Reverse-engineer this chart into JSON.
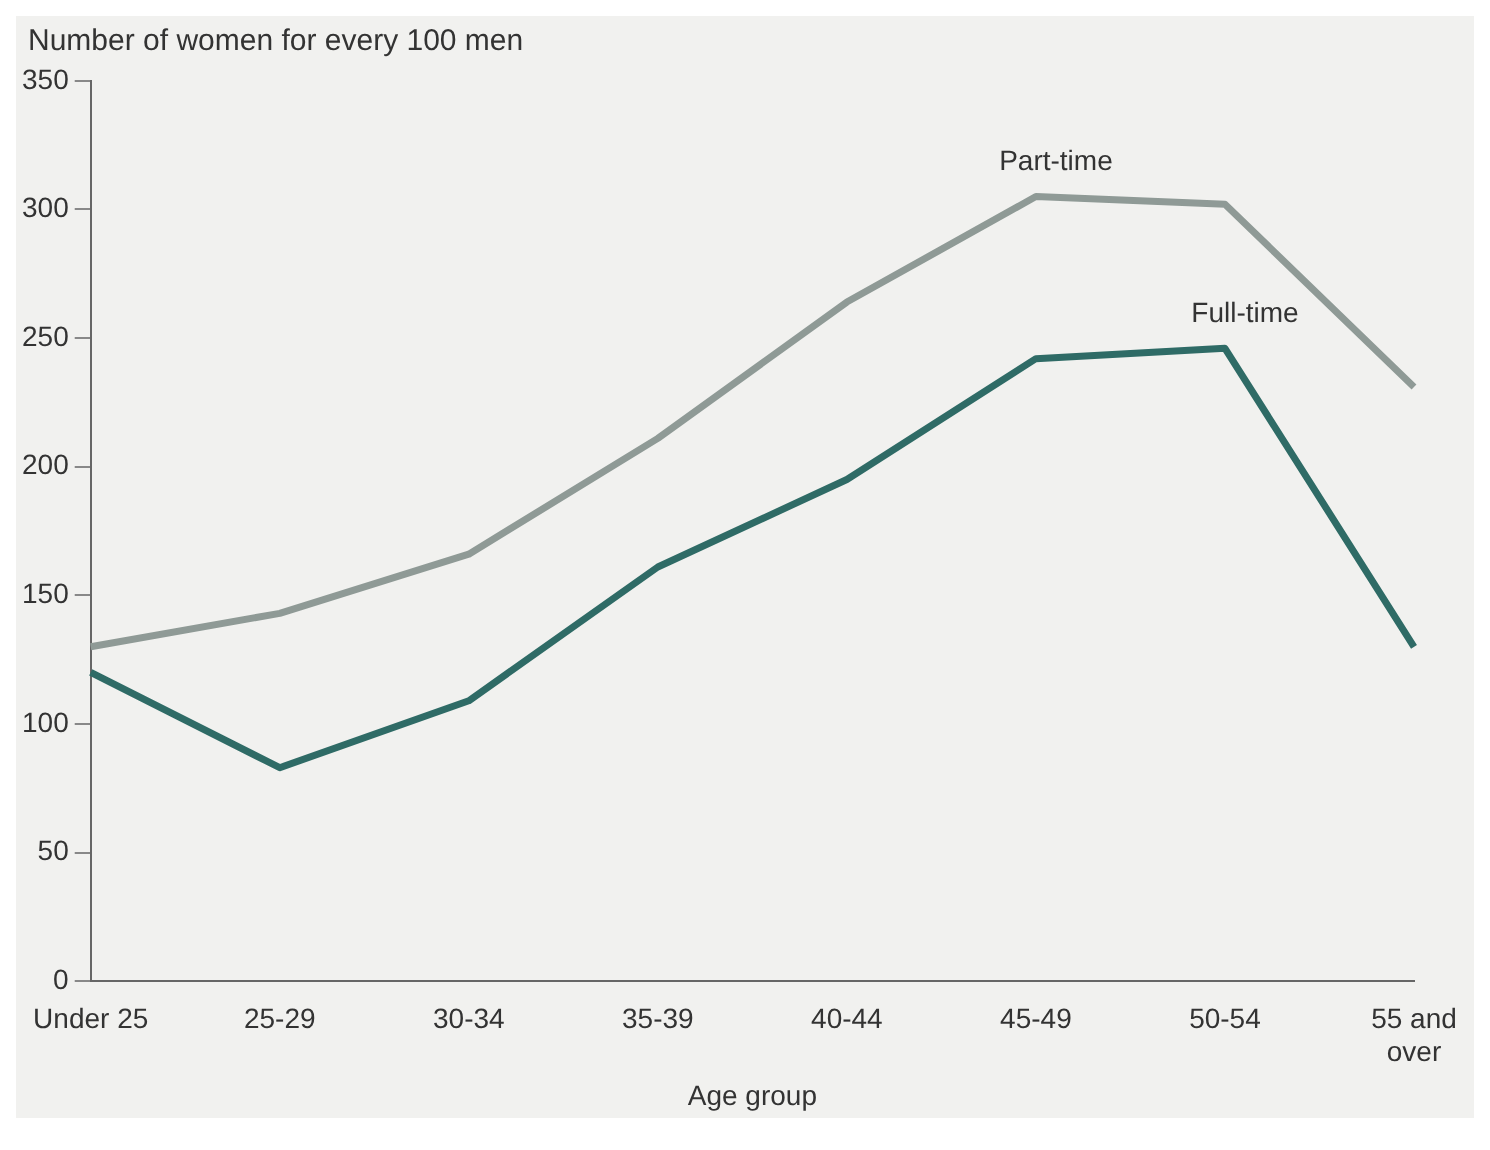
{
  "chart_data": {
    "type": "line",
    "ylabel": "Number of women for every 100 men",
    "xlabel": "Age group",
    "categories": [
      "Under 25",
      "25-29",
      "30-34",
      "35-39",
      "40-44",
      "45-49",
      "50-54",
      "55 and over"
    ],
    "series": [
      {
        "name": "Part-time",
        "color": "#8f9a96",
        "values": [
          130,
          143,
          166,
          211,
          264,
          305,
          302,
          231
        ]
      },
      {
        "name": "Full-time",
        "color": "#2f6b66",
        "values": [
          120,
          83,
          109,
          161,
          195,
          242,
          246,
          130
        ]
      }
    ],
    "ylim": [
      0,
      350
    ],
    "yticks": [
      0,
      50,
      100,
      150,
      200,
      250,
      300,
      350
    ],
    "grid": false,
    "legend": false,
    "marker": "none",
    "line_style": "solid"
  }
}
